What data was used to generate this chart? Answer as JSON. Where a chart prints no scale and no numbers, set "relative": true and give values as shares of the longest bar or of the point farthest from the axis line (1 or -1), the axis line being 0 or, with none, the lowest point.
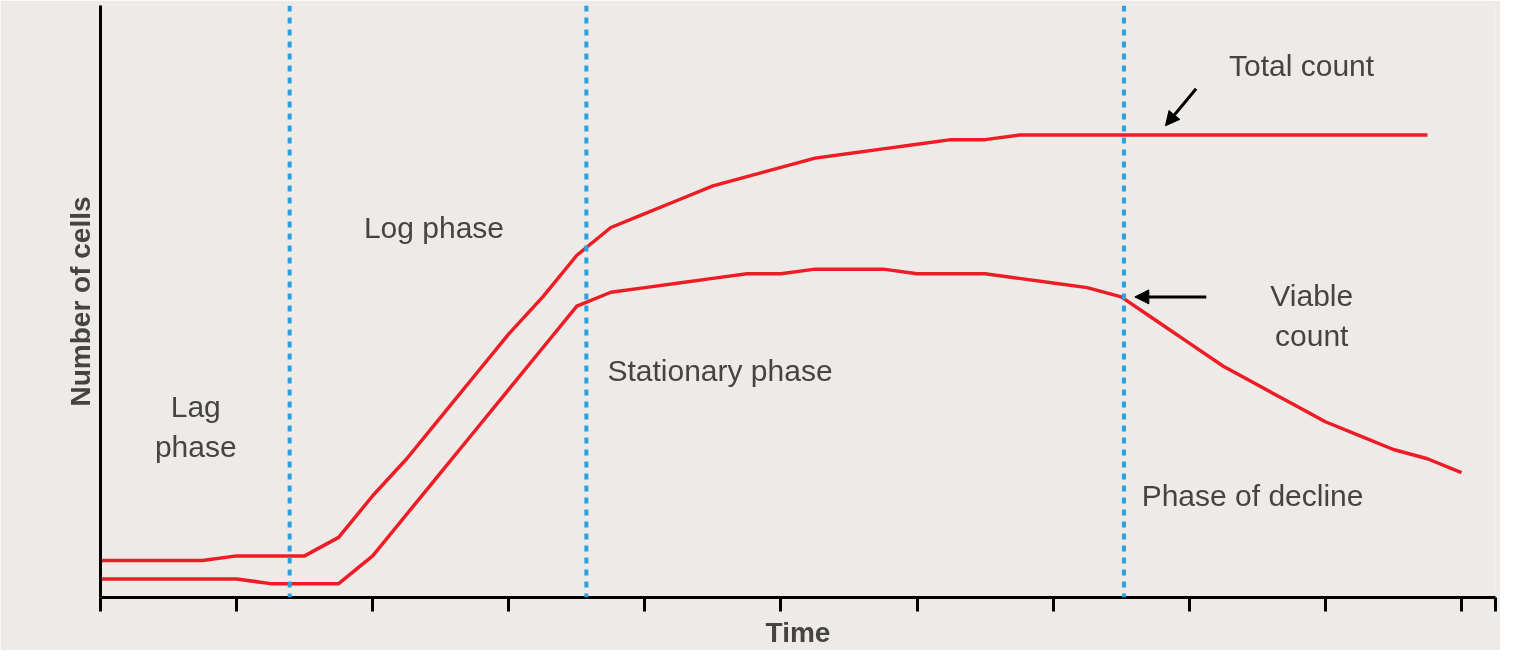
{
  "chart_data": {
    "type": "line",
    "relative": true,
    "xlabel": "Time",
    "ylabel": "Number of cells",
    "categories": [
      null,
      null,
      null,
      null,
      null,
      null,
      null,
      null,
      null,
      null,
      null,
      null,
      null,
      null,
      null,
      null,
      null,
      null,
      null,
      null,
      null,
      null,
      null,
      null,
      null,
      null,
      null,
      null,
      null,
      null,
      null,
      null,
      null,
      null,
      null,
      null,
      null,
      null,
      null,
      null,
      null,
      null
    ],
    "grid": false,
    "marker": "none",
    "line_style": "solid",
    "series": [
      {
        "color": "#ee1c25",
        "values": [
          0.08,
          0.08,
          0.08,
          0.08,
          0.09,
          0.09,
          0.09,
          0.13,
          0.22,
          0.3,
          0.39,
          0.48,
          0.57,
          0.65,
          0.74,
          0.8,
          0.83,
          0.86,
          0.89,
          0.91,
          0.93,
          0.95,
          0.96,
          0.97,
          0.98,
          0.99,
          0.99,
          1.0,
          1.0,
          1.0,
          1.0,
          1.0,
          1.0,
          1.0,
          1.0,
          1.0,
          1.0,
          1.0,
          1.0,
          1.0,
          null,
          null
        ]
      },
      {
        "color": "#ee1c25",
        "values": [
          0.04,
          0.04,
          0.04,
          0.04,
          0.04,
          0.03,
          0.03,
          0.03,
          0.09,
          0.18,
          0.27,
          0.36,
          0.45,
          0.54,
          0.63,
          0.66,
          0.67,
          0.68,
          0.69,
          0.7,
          0.7,
          0.71,
          0.71,
          0.71,
          0.7,
          0.7,
          0.7,
          0.69,
          0.68,
          0.67,
          0.65,
          0.6,
          0.55,
          0.5,
          0.46,
          0.42,
          0.38,
          0.35,
          0.32,
          0.3,
          0.27,
          null
        ]
      }
    ],
    "annotations": [
      "Lag\nphase",
      "Log phase",
      "Stationary phase",
      "Phase of decline",
      "Total count",
      "Viable\ncount"
    ]
  }
}
